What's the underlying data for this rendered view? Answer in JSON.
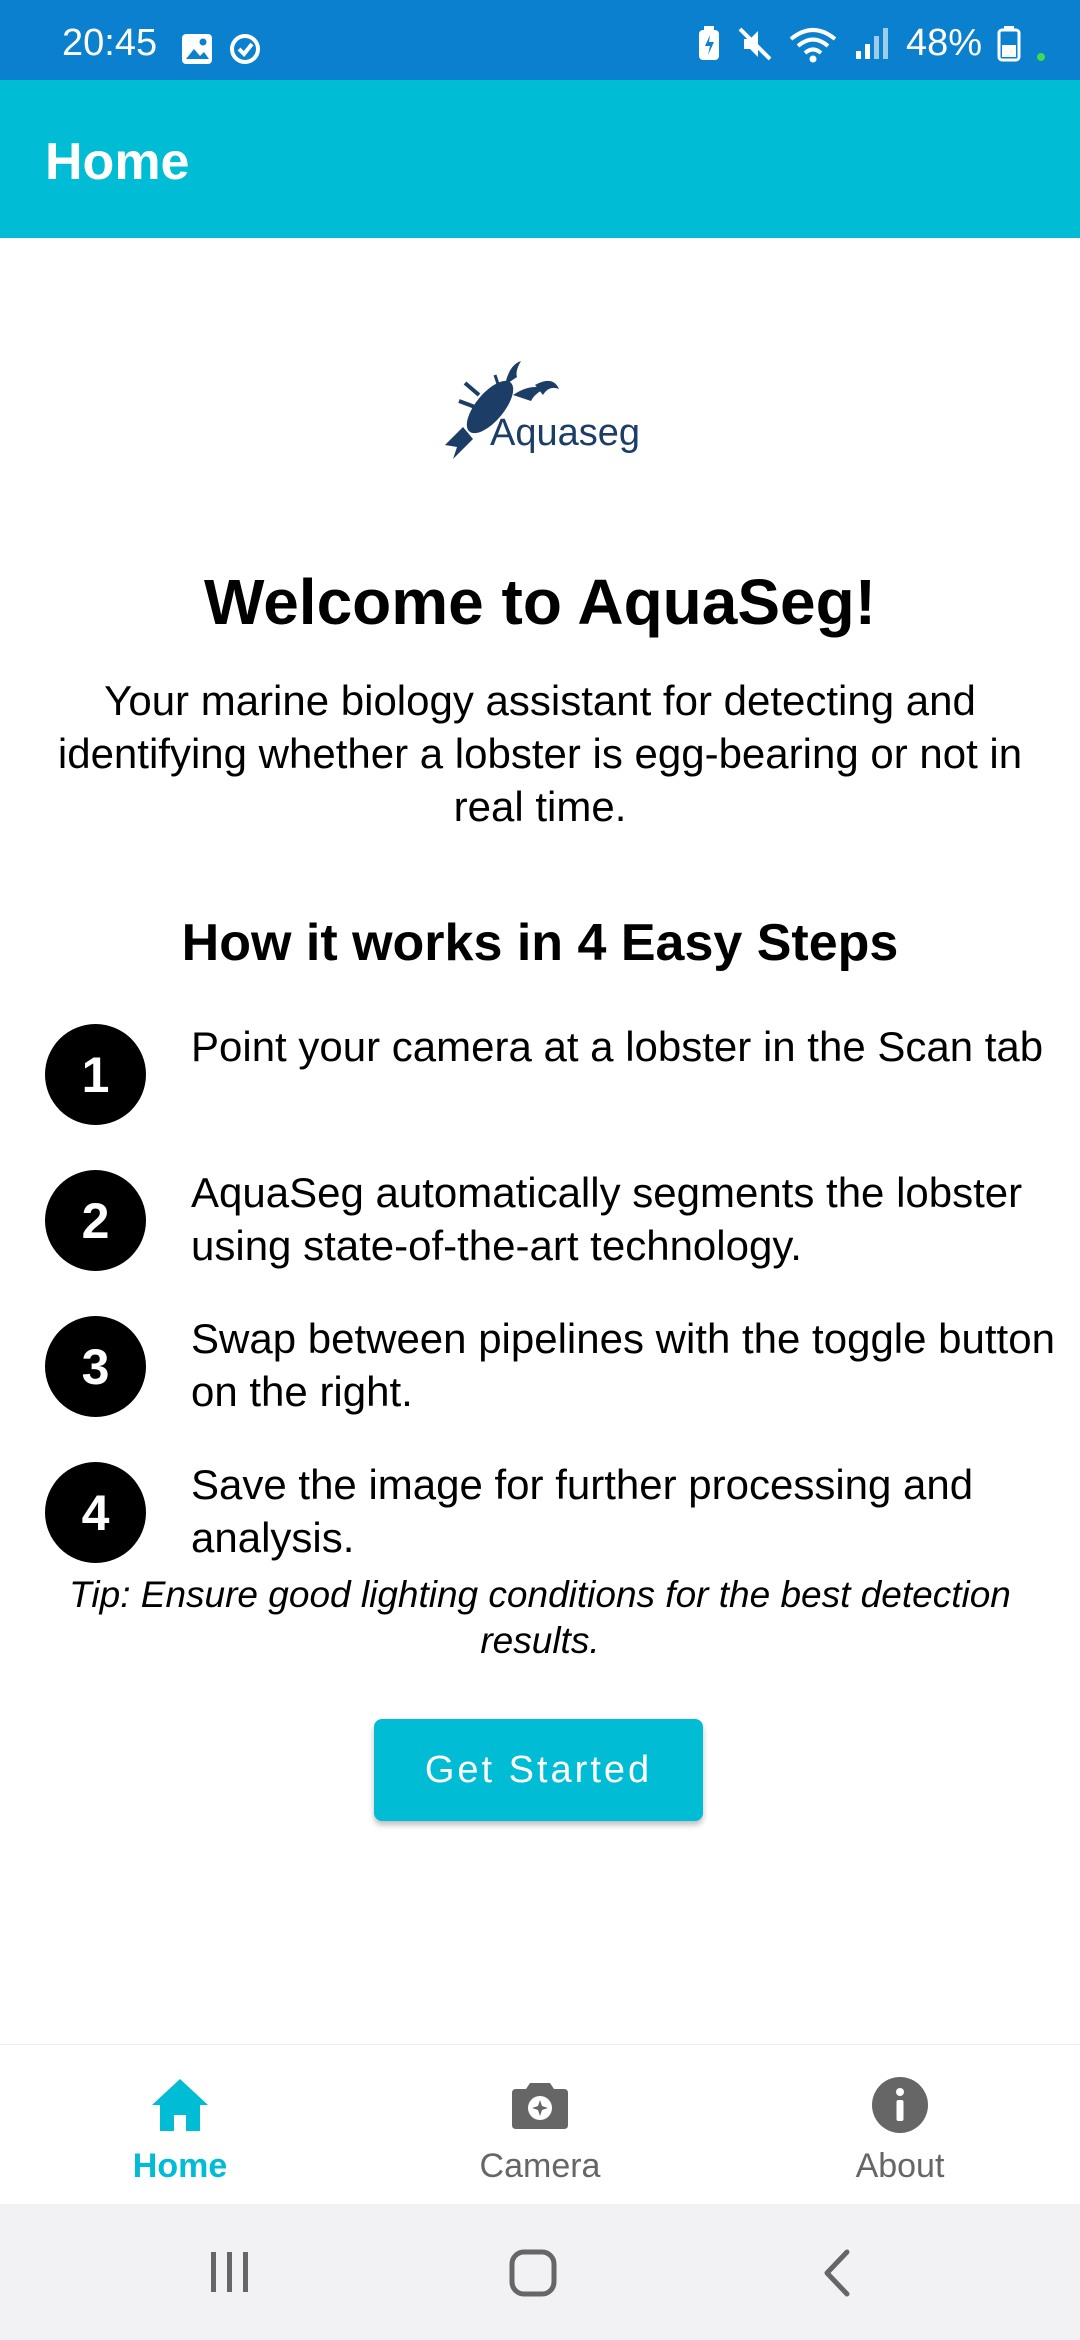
{
  "status": {
    "time": "20:45",
    "battery": "48%"
  },
  "app_bar": {
    "title": "Home"
  },
  "logo": {
    "text": "Aquaseg"
  },
  "welcome": {
    "title": "Welcome to AquaSeg!",
    "intro": "Your marine biology assistant for detecting and identifying whether a lobster is egg-bearing or not in real time."
  },
  "steps_title": "How it works in 4 Easy Steps",
  "steps": [
    {
      "num": "1",
      "text": "Point your camera at a lobster in the Scan tab"
    },
    {
      "num": "2",
      "text": "AquaSeg automatically segments the lobster using state-of-the-art technology."
    },
    {
      "num": "3",
      "text": "Swap between pipelines with the toggle button on the right."
    },
    {
      "num": "4",
      "text": "Save the image for further processing and analysis."
    }
  ],
  "tip": "Tip: Ensure good lighting conditions for the best detection results.",
  "cta_label": "Get Started",
  "bottom_nav": [
    {
      "label": "Home",
      "icon": "home-icon",
      "active": true
    },
    {
      "label": "Camera",
      "icon": "camera-icon",
      "active": false
    },
    {
      "label": "About",
      "icon": "info-icon",
      "active": false
    }
  ],
  "colors": {
    "accent": "#00bcd4",
    "status_bar": "#0a80cf",
    "logo": "#1c3e66"
  }
}
